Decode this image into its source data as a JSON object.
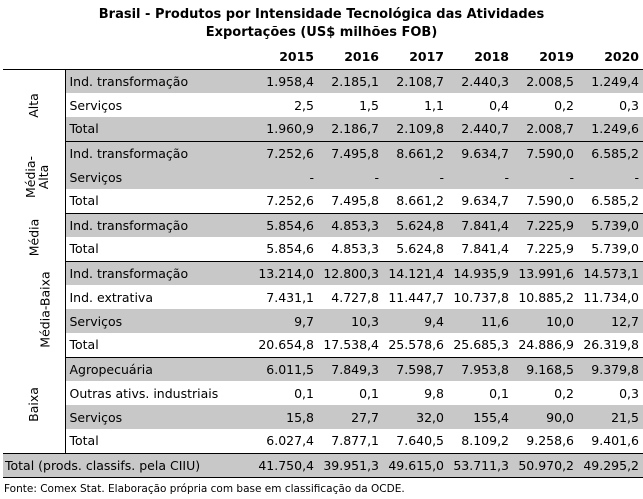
{
  "title": {
    "line1": "Brasil - Produtos por Intensidade Tecnológica das Atividades",
    "line2": "Exportações (US$ milhões FOB)"
  },
  "years": [
    "2015",
    "2016",
    "2017",
    "2018",
    "2019",
    "2020"
  ],
  "groups": [
    {
      "name": "Alta",
      "rows": [
        {
          "label": "Ind. transformação",
          "values": [
            "1.958,4",
            "2.185,1",
            "2.108,7",
            "2.440,3",
            "2.008,5",
            "1.249,4"
          ]
        },
        {
          "label": "Serviços",
          "values": [
            "2,5",
            "1,5",
            "1,1",
            "0,4",
            "0,2",
            "0,3"
          ]
        },
        {
          "label": "Total",
          "values": [
            "1.960,9",
            "2.186,7",
            "2.109,8",
            "2.440,7",
            "2.008,7",
            "1.249,6"
          ]
        }
      ]
    },
    {
      "name": "Média-Alta",
      "rows": [
        {
          "label": "Ind. transformação",
          "values": [
            "7.252,6",
            "7.495,8",
            "8.661,2",
            "9.634,7",
            "7.590,0",
            "6.585,2"
          ]
        },
        {
          "label": "Serviços",
          "values": [
            "-",
            "-",
            "-",
            "-",
            "-",
            "-"
          ]
        },
        {
          "label": "Total",
          "values": [
            "7.252,6",
            "7.495,8",
            "8.661,2",
            "9.634,7",
            "7.590,0",
            "6.585,2"
          ]
        }
      ]
    },
    {
      "name": "Média",
      "rows": [
        {
          "label": "Ind. transformação",
          "values": [
            "5.854,6",
            "4.853,3",
            "5.624,8",
            "7.841,4",
            "7.225,9",
            "5.739,0"
          ]
        },
        {
          "label": "Total",
          "values": [
            "5.854,6",
            "4.853,3",
            "5.624,8",
            "7.841,4",
            "7.225,9",
            "5.739,0"
          ]
        }
      ]
    },
    {
      "name": "Média-Baixa",
      "rows": [
        {
          "label": "Ind. transformação",
          "values": [
            "13.214,0",
            "12.800,3",
            "14.121,4",
            "14.935,9",
            "13.991,6",
            "14.573,1"
          ]
        },
        {
          "label": "Ind. extrativa",
          "values": [
            "7.431,1",
            "4.727,8",
            "11.447,7",
            "10.737,8",
            "10.885,2",
            "11.734,0"
          ]
        },
        {
          "label": "Serviços",
          "values": [
            "9,7",
            "10,3",
            "9,4",
            "11,6",
            "10,0",
            "12,7"
          ]
        },
        {
          "label": "Total",
          "values": [
            "20.654,8",
            "17.538,4",
            "25.578,6",
            "25.685,3",
            "24.886,9",
            "26.319,8"
          ]
        }
      ]
    },
    {
      "name": "Baixa",
      "rows": [
        {
          "label": "Agropecuária",
          "values": [
            "6.011,5",
            "7.849,3",
            "7.598,7",
            "7.953,8",
            "9.168,5",
            "9.379,8"
          ]
        },
        {
          "label": "Outras ativs. industriais",
          "values": [
            "0,1",
            "0,1",
            "9,8",
            "0,1",
            "0,2",
            "0,3"
          ]
        },
        {
          "label": "Serviços",
          "values": [
            "15,8",
            "27,7",
            "32,0",
            "155,4",
            "90,0",
            "21,5"
          ]
        },
        {
          "label": "Total",
          "values": [
            "6.027,4",
            "7.877,1",
            "7.640,5",
            "8.109,2",
            "9.258,6",
            "9.401,6"
          ]
        }
      ]
    }
  ],
  "grand_total": {
    "label": "Total (prods. classifs. pela CIIU)",
    "values": [
      "41.750,4",
      "39.951,3",
      "49.615,0",
      "53.711,3",
      "50.970,2",
      "49.295,2"
    ]
  },
  "source": "Fonte: Comex Stat. Elaboração própria com base em classificação da OCDE."
}
